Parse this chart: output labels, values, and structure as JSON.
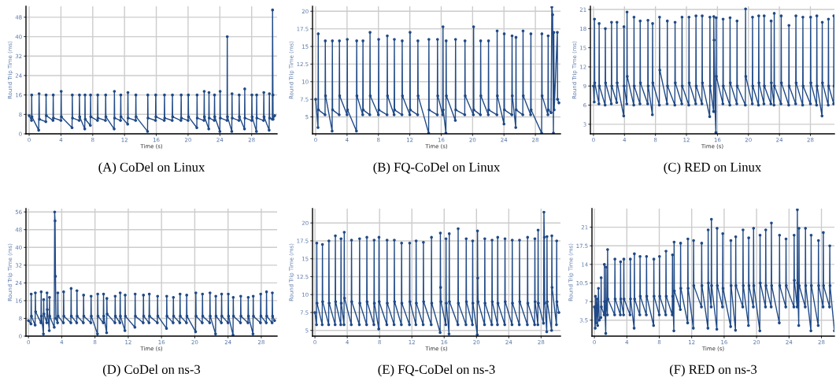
{
  "chart_data": [
    {
      "type": "line",
      "title": "(A) CoDel on Linux",
      "xlabel": "Time (s)",
      "ylabel": "Round Trip Time (ms)",
      "xlim": [
        -0.4,
        31.2
      ],
      "ylim": [
        0,
        52.5
      ],
      "xticks": [
        0,
        4,
        8,
        12,
        16,
        20,
        24,
        28
      ],
      "yticks": [
        0,
        8,
        16,
        24,
        32,
        40,
        48
      ],
      "grid": true,
      "marker": "circle",
      "line_style": "solid",
      "series": [
        {
          "color": "#204a87",
          "x": [
            0,
            0.3,
            0.32,
            0.35,
            1.2,
            1.25,
            1.3,
            2.1,
            2.13,
            2.16,
            3.0,
            3.03,
            3.06,
            4.0,
            4.03,
            4.06,
            5.4,
            5.43,
            5.46,
            6.3,
            6.33,
            6.36,
            7.0,
            7.03,
            7.06,
            7.7,
            7.73,
            7.76,
            8.6,
            8.63,
            8.66,
            9.6,
            9.63,
            9.66,
            10.7,
            10.73,
            10.76,
            11.5,
            11.53,
            11.56,
            12.4,
            12.43,
            12.46,
            13.4,
            13.43,
            13.46,
            14.9,
            14.93,
            14.96,
            15.9,
            15.93,
            15.96,
            17.0,
            17.03,
            17.06,
            18.0,
            18.03,
            18.06,
            19.1,
            19.13,
            19.16,
            20.0,
            20.03,
            20.06,
            21.1,
            21.13,
            21.16,
            22.0,
            22.03,
            22.06,
            22.6,
            22.63,
            22.66,
            23.3,
            23.33,
            23.36,
            24.0,
            24.03,
            24.06,
            24.9,
            24.93,
            24.96,
            25.5,
            25.53,
            25.56,
            26.4,
            26.43,
            26.46,
            27.1,
            27.13,
            27.16,
            28.0,
            28.03,
            28.06,
            28.6,
            28.63,
            28.66,
            29.5,
            29.53,
            29.56,
            30.2,
            30.23,
            30.26,
            30.6,
            30.63,
            30.68,
            30.7,
            30.9
          ],
          "values": [
            7.5,
            5.5,
            16,
            7,
            1.5,
            16.5,
            6,
            5,
            16,
            7.5,
            5.5,
            16,
            6.5,
            5.5,
            17.5,
            7,
            2.5,
            16,
            6.5,
            5.5,
            16,
            7,
            2,
            16,
            6,
            3.5,
            16,
            7,
            5.5,
            16,
            6.5,
            5.5,
            16,
            7,
            2,
            17.5,
            6.5,
            5.5,
            16,
            7,
            4,
            17,
            6.5,
            5.5,
            16,
            7,
            1,
            16,
            6.5,
            5.5,
            16,
            7,
            5.5,
            16,
            6.5,
            5.5,
            16,
            7,
            5.5,
            16,
            6.5,
            5.5,
            16,
            7,
            2.5,
            16,
            6.5,
            5.5,
            17.5,
            7,
            2,
            17,
            6.5,
            5.5,
            16,
            7,
            1,
            17.5,
            6.5,
            5.5,
            40,
            7,
            1,
            16.5,
            6.5,
            5.5,
            16,
            7,
            2,
            18.5,
            6.5,
            5.5,
            16,
            7,
            1,
            16,
            6.5,
            5.5,
            17,
            7,
            1.5,
            16.5,
            6.5,
            6,
            51,
            16,
            6,
            7.5
          ]
        }
      ]
    },
    {
      "type": "line",
      "title": "(B) FQ-CoDel on Linux",
      "xlabel": "Time (s)",
      "ylabel": "Round Trip Time (ms)",
      "xlim": [
        -0.4,
        31.2
      ],
      "ylim": [
        2.6,
        20.7
      ],
      "xticks": [
        0,
        4,
        8,
        12,
        16,
        20,
        24,
        28
      ],
      "yticks": [
        5,
        7.5,
        10,
        12.5,
        15,
        17.5,
        20
      ],
      "grid": true,
      "marker": "circle",
      "line_style": "solid",
      "series": [
        {
          "color": "#204a87",
          "x": [
            0,
            0.3,
            0.33,
            0.36,
            1.2,
            1.23,
            1.26,
            2.1,
            2.13,
            2.16,
            3.0,
            3.03,
            3.06,
            4.0,
            4.03,
            4.06,
            5.2,
            5.23,
            5.26,
            6.0,
            6.03,
            6.06,
            6.9,
            6.93,
            6.96,
            8.0,
            8.03,
            8.06,
            9.1,
            9.13,
            9.16,
            10.0,
            10.03,
            10.06,
            11.0,
            11.03,
            11.06,
            12.0,
            12.03,
            12.06,
            13.0,
            13.03,
            13.06,
            14.4,
            14.43,
            14.46,
            15.5,
            15.53,
            15.56,
            16.2,
            16.23,
            16.26,
            16.6,
            16.63,
            16.66,
            17.8,
            17.83,
            17.86,
            19.0,
            19.03,
            19.06,
            20.1,
            20.13,
            20.16,
            21.0,
            21.03,
            21.06,
            22.0,
            22.03,
            22.06,
            23.1,
            23.13,
            23.16,
            24.0,
            24.03,
            24.06,
            25.0,
            25.03,
            25.06,
            25.5,
            25.53,
            25.56,
            26.4,
            26.43,
            26.46,
            27.4,
            27.43,
            27.46,
            28.8,
            28.83,
            28.86,
            29.6,
            29.63,
            29.66,
            30.0,
            30.1,
            30.2,
            30.3,
            30.35,
            30.4,
            30.8,
            30.83,
            31.0
          ],
          "values": [
            7.5,
            3.5,
            16.8,
            6,
            5.3,
            15.8,
            8,
            3,
            15.8,
            6,
            5.3,
            15.8,
            8,
            5.3,
            16,
            6,
            3,
            15.8,
            8,
            5.3,
            15.8,
            6,
            5.3,
            17,
            8,
            5.3,
            16,
            6,
            5.3,
            16.5,
            8,
            5.3,
            16,
            6,
            5.3,
            15.8,
            8,
            5.3,
            17,
            6,
            5.3,
            15.8,
            8,
            2.7,
            16,
            6,
            5.3,
            16,
            8,
            5.3,
            17.8,
            6,
            2.7,
            15.8,
            8,
            4.5,
            16,
            6,
            5.3,
            15.8,
            8,
            5.3,
            17.8,
            6,
            5.3,
            15.8,
            8,
            5.3,
            15.8,
            6,
            5.3,
            17.2,
            8,
            4,
            16.8,
            6,
            5.3,
            16.5,
            8,
            3.5,
            16.3,
            6,
            5.3,
            17.2,
            8,
            5.3,
            16.8,
            6,
            2.7,
            16.8,
            8,
            5.3,
            16.5,
            6,
            5.6,
            20.6,
            19.5,
            2.7,
            17,
            6,
            17,
            7.5,
            7
          ]
        }
      ]
    },
    {
      "type": "line",
      "title": "(C) RED on Linux",
      "xlabel": "Time (s)",
      "ylabel": "Round Trip Time (ms)",
      "xlim": [
        -0.4,
        31.1
      ],
      "ylim": [
        1.5,
        21.5
      ],
      "xticks": [
        0,
        4,
        8,
        12,
        16,
        20,
        24,
        28
      ],
      "yticks": [
        3,
        6,
        9,
        12,
        15,
        18,
        21
      ],
      "grid": true,
      "marker": "circle",
      "line_style": "solid",
      "series": [
        {
          "color": "#204a87",
          "x": [
            0,
            0.1,
            0.13,
            0.16,
            0.7,
            0.73,
            0.76,
            1.5,
            1.53,
            1.56,
            2.3,
            2.33,
            2.36,
            3.0,
            3.03,
            3.06,
            3.9,
            3.93,
            3.96,
            4.3,
            4.33,
            4.36,
            5.2,
            5.23,
            5.26,
            6.0,
            6.03,
            6.06,
            7.0,
            7.03,
            7.06,
            7.6,
            7.63,
            7.66,
            8.5,
            8.53,
            8.56,
            9.5,
            9.53,
            9.56,
            10.5,
            10.53,
            10.56,
            11.4,
            11.43,
            11.46,
            12.3,
            12.33,
            12.36,
            13.2,
            13.23,
            13.26,
            14.0,
            14.03,
            14.06,
            15.0,
            15.03,
            15.06,
            15.5,
            15.53,
            15.56,
            15.7,
            15.8,
            15.83,
            15.86,
            16.7,
            16.73,
            16.76,
            17.6,
            17.63,
            17.66,
            18.5,
            18.53,
            18.56,
            19.6,
            19.63,
            19.66,
            20.5,
            20.53,
            20.56,
            21.3,
            21.33,
            21.36,
            22.0,
            22.03,
            22.06,
            22.9,
            22.93,
            22.96,
            23.3,
            23.33,
            23.36,
            24.2,
            24.23,
            24.26,
            25.2,
            25.23,
            25.26,
            26.1,
            26.13,
            26.16,
            27.0,
            27.03,
            27.06,
            28.0,
            28.03,
            28.06,
            28.8,
            28.83,
            28.86,
            29.5,
            29.53,
            29.56,
            30.3,
            30.33,
            30.36,
            31.0,
            31.03,
            31.06
          ],
          "values": [
            9,
            6.5,
            19.5,
            9.5,
            6.2,
            18.8,
            9,
            6,
            18,
            9.5,
            6.2,
            19,
            9,
            6.4,
            19,
            9.5,
            4.3,
            18.3,
            9,
            6.2,
            20.6,
            10.5,
            6,
            19.8,
            9,
            6.2,
            19.2,
            9.5,
            6.2,
            19.3,
            9,
            4.5,
            18.8,
            9.5,
            6,
            19.8,
            11.5,
            6.2,
            19.2,
            9,
            6,
            19,
            9.5,
            6.2,
            19.8,
            9,
            6,
            19.8,
            9.5,
            6.2,
            20,
            9,
            6.2,
            20,
            9.5,
            4.2,
            19.8,
            9,
            5,
            19.9,
            16.2,
            5,
            1.7,
            19.7,
            10.5,
            6.2,
            19.5,
            9,
            6,
            19.7,
            9.5,
            6.2,
            19.2,
            9,
            6,
            21.1,
            10.5,
            6.2,
            19.8,
            9,
            6,
            20,
            9.5,
            6.2,
            20,
            9,
            6.2,
            19.2,
            9.5,
            6,
            20.4,
            9,
            6.2,
            20,
            9.5,
            6,
            18.5,
            9,
            6.2,
            20,
            9.5,
            6,
            19.8,
            9,
            6.2,
            19.8,
            9.5,
            6,
            20,
            9,
            4.3,
            19,
            9.5,
            6,
            19.5,
            9,
            6.2,
            20,
            9
          ]
        }
      ]
    },
    {
      "type": "line",
      "title": "(D) CoDel on ns-3",
      "xlabel": "Time (s)",
      "ylabel": "Round Trip Time (ms)",
      "xlim": [
        -0.3,
        29.9
      ],
      "ylim": [
        0,
        57.5
      ],
      "xticks": [
        0,
        4,
        8,
        12,
        16,
        20,
        24,
        28
      ],
      "yticks": [
        0,
        8,
        16,
        24,
        32,
        40,
        48,
        56
      ],
      "grid": true,
      "marker": "circle",
      "line_style": "solid",
      "series": [
        {
          "color": "#204a87",
          "x": [
            0,
            0.3,
            0.33,
            0.36,
            0.8,
            0.83,
            0.86,
            1.5,
            1.53,
            1.56,
            1.8,
            1.83,
            1.86,
            2.2,
            2.23,
            2.26,
            2.5,
            2.53,
            2.56,
            3.1,
            3.15,
            3.2,
            3.25,
            3.3,
            3.5,
            3.53,
            3.56,
            4.2,
            4.23,
            4.26,
            5.1,
            5.13,
            5.16,
            5.8,
            5.83,
            5.86,
            6.6,
            6.63,
            6.66,
            7.5,
            7.53,
            7.56,
            8.3,
            8.33,
            8.36,
            9.0,
            9.03,
            9.06,
            9.4,
            9.43,
            9.46,
            10.4,
            10.43,
            10.46,
            11.0,
            11.03,
            11.06,
            11.6,
            11.63,
            11.66,
            12.8,
            12.83,
            12.86,
            13.8,
            13.83,
            13.86,
            14.5,
            14.53,
            14.56,
            15.5,
            15.53,
            15.56,
            16.6,
            16.63,
            16.66,
            17.4,
            17.43,
            17.46,
            18.2,
            18.23,
            18.26,
            19.0,
            19.03,
            19.06,
            20.1,
            20.13,
            20.16,
            20.9,
            20.93,
            20.96,
            21.8,
            21.83,
            21.86,
            22.5,
            22.53,
            22.56,
            23.2,
            23.23,
            23.26,
            24.0,
            24.03,
            24.06,
            24.6,
            24.63,
            24.66,
            25.5,
            25.53,
            25.56,
            26.4,
            26.43,
            26.46,
            27.0,
            27.03,
            27.06,
            27.9,
            27.93,
            27.96,
            28.6,
            28.63,
            28.66,
            29.3,
            29.33,
            29.36,
            29.6
          ],
          "values": [
            7,
            5.5,
            19,
            9,
            5,
            19.5,
            11,
            6,
            20,
            9,
            1,
            16.5,
            10,
            6,
            19.5,
            12,
            2.5,
            17.5,
            9,
            4,
            56,
            52,
            27,
            8,
            6,
            19.5,
            9,
            6,
            20,
            9,
            6,
            21.5,
            9,
            6,
            20.5,
            9,
            6,
            18.5,
            9,
            6,
            18,
            9,
            1,
            19,
            9,
            6,
            19,
            9,
            1.5,
            17,
            10,
            6,
            18,
            9,
            6,
            19.5,
            9,
            2.5,
            18.5,
            9,
            4,
            19,
            9,
            6,
            18.5,
            9,
            6,
            19,
            9,
            6,
            18,
            9,
            3.5,
            18,
            9,
            6,
            17.5,
            9,
            6,
            19,
            9,
            6,
            18.5,
            9,
            2,
            19.5,
            9,
            6,
            19,
            9,
            6,
            19.5,
            9,
            1,
            18,
            9,
            6,
            19,
            9,
            6,
            19,
            9,
            0.5,
            17.5,
            9,
            6,
            18,
            9,
            6,
            17.5,
            9,
            1,
            18,
            9,
            6,
            19,
            9,
            6,
            20,
            9,
            6,
            19.5,
            9,
            7
          ]
        }
      ]
    },
    {
      "type": "line",
      "title": "(E) FQ-CoDel on ns-3",
      "xlabel": "Time (s)",
      "ylabel": "Round Trip Time (ms)",
      "xlim": [
        -0.3,
        30.4
      ],
      "ylim": [
        4.2,
        22
      ],
      "xticks": [
        0,
        4,
        8,
        12,
        16,
        20,
        24,
        28
      ],
      "yticks": [
        5,
        7.5,
        10,
        12.5,
        15,
        17.5,
        20
      ],
      "grid": true,
      "marker": "circle",
      "line_style": "solid",
      "series": [
        {
          "color": "#204a87",
          "x": [
            0,
            0.2,
            0.23,
            0.26,
            0.9,
            0.93,
            0.96,
            1.7,
            1.73,
            1.76,
            2.5,
            2.53,
            2.56,
            3.2,
            3.23,
            3.26,
            3.6,
            3.63,
            3.66,
            4.5,
            4.53,
            4.56,
            5.5,
            5.53,
            5.56,
            6.4,
            6.43,
            6.46,
            7.3,
            7.33,
            7.36,
            7.9,
            7.93,
            7.96,
            8.9,
            8.93,
            8.96,
            9.8,
            9.83,
            9.86,
            10.7,
            10.73,
            10.76,
            11.7,
            11.73,
            11.76,
            12.5,
            12.53,
            12.56,
            13.4,
            13.43,
            13.46,
            14.4,
            14.43,
            14.46,
            15.5,
            15.53,
            15.56,
            15.6,
            16.2,
            16.23,
            16.26,
            16.6,
            16.63,
            16.66,
            17.7,
            17.73,
            17.76,
            18.7,
            18.73,
            18.76,
            19.5,
            19.53,
            19.56,
            20.1,
            20.13,
            20.16,
            20.2,
            21.0,
            21.03,
            21.06,
            21.9,
            21.93,
            21.96,
            22.6,
            22.63,
            22.66,
            23.5,
            23.53,
            23.56,
            24.4,
            24.43,
            24.46,
            25.3,
            25.33,
            25.36,
            26.3,
            26.33,
            26.36,
            27.2,
            27.23,
            27.26,
            27.6,
            27.63,
            27.66,
            28.3,
            28.35,
            28.4,
            28.45,
            28.7,
            28.73,
            28.76,
            29.3,
            29.33,
            29.36,
            29.9,
            29.93,
            29.96,
            30.2
          ],
          "values": [
            7.5,
            5.8,
            17.2,
            8.8,
            5.8,
            17,
            9,
            5.8,
            17.5,
            8.8,
            5.8,
            18.2,
            9,
            5.8,
            17.8,
            8.8,
            5.8,
            18.7,
            9.5,
            5.8,
            17.6,
            9,
            5.8,
            17.8,
            8.8,
            5.8,
            18,
            9,
            5.8,
            17.6,
            8.8,
            5.2,
            18,
            9,
            5.8,
            17.6,
            8.8,
            5.8,
            17.6,
            9,
            5.8,
            17.2,
            8.8,
            5.8,
            17.2,
            9,
            5.8,
            17.5,
            8.8,
            5.8,
            17.3,
            9,
            5.8,
            18,
            8.8,
            4.7,
            18.6,
            11,
            9,
            5.8,
            17.8,
            8.8,
            4.5,
            18.5,
            9,
            5.8,
            19.2,
            8.8,
            5.8,
            17.8,
            9,
            5.8,
            17.5,
            8.8,
            4.4,
            18.9,
            12.3,
            9,
            5.8,
            17.8,
            8.8,
            5.8,
            17.6,
            9,
            5.8,
            18,
            8.8,
            5.8,
            17.8,
            9,
            5.8,
            17.6,
            8.8,
            5.8,
            17.6,
            9,
            5.8,
            18,
            8.8,
            5.8,
            17.8,
            9,
            5.8,
            19,
            8.8,
            6,
            21.5,
            18,
            8.8,
            4.8,
            18.1,
            9,
            5,
            18.2,
            11,
            5.8,
            17.5,
            9,
            7.5
          ]
        }
      ]
    },
    {
      "type": "line",
      "title": "(F) RED on ns-3",
      "xlabel": "Time (s)",
      "ylabel": "Round Trip Time (ms)",
      "xlim": [
        -0.3,
        29.6
      ],
      "ylim": [
        0.5,
        24.5
      ],
      "xticks": [
        0,
        4,
        8,
        12,
        16,
        20,
        24,
        28
      ],
      "yticks": [
        3.5,
        7,
        10.5,
        14,
        17.5,
        21
      ],
      "grid": true,
      "marker": "circle",
      "line_style": "solid",
      "series": [
        {
          "color": "#204a87",
          "x": [
            0,
            0.1,
            0.13,
            0.2,
            0.3,
            0.4,
            0.5,
            0.6,
            0.8,
            0.83,
            0.86,
            1.2,
            1.23,
            1.26,
            1.4,
            1.43,
            1.46,
            1.6,
            1.63,
            1.66,
            2.5,
            2.53,
            2.56,
            3.2,
            3.23,
            3.26,
            3.6,
            3.63,
            3.66,
            4.4,
            4.43,
            4.46,
            4.9,
            4.93,
            4.96,
            5.6,
            5.63,
            5.66,
            6.4,
            6.43,
            6.46,
            7.3,
            7.33,
            7.36,
            8.0,
            8.03,
            8.06,
            8.8,
            8.83,
            8.86,
            9.6,
            9.63,
            9.66,
            9.8,
            9.83,
            9.86,
            10.6,
            10.63,
            10.66,
            11.5,
            11.53,
            11.56,
            12.2,
            12.23,
            12.26,
            13.2,
            13.23,
            13.26,
            14.0,
            14.03,
            14.06,
            14.4,
            14.43,
            14.46,
            15.1,
            15.13,
            15.16,
            15.8,
            15.83,
            15.86,
            16.8,
            16.83,
            16.86,
            17.4,
            17.43,
            17.46,
            18.3,
            18.33,
            18.36,
            19.0,
            19.03,
            19.06,
            19.6,
            19.63,
            19.66,
            20.4,
            20.43,
            20.46,
            21.1,
            21.13,
            21.16,
            21.8,
            21.83,
            21.86,
            22.8,
            22.83,
            22.86,
            23.6,
            23.63,
            23.66,
            24.6,
            24.63,
            24.66,
            25.0,
            25.03,
            25.06,
            25.2,
            25.23,
            25.26,
            26.0,
            26.03,
            26.06,
            26.7,
            26.73,
            26.76,
            27.6,
            27.63,
            27.66,
            28.2,
            28.23,
            28.26,
            29.0,
            29.03,
            29.06,
            29.6
          ],
          "values": [
            6,
            2,
            8,
            3,
            7.5,
            2.5,
            9.5,
            3.5,
            4,
            11.5,
            6,
            4.5,
            14,
            7,
            1,
            13.5,
            7,
            4.5,
            16.8,
            7.5,
            4.5,
            15,
            7.5,
            4.5,
            14.5,
            7.5,
            4.5,
            15,
            7.5,
            4.5,
            15,
            7.5,
            2,
            16,
            7.5,
            4.5,
            15.5,
            8,
            4.5,
            15.5,
            8,
            2.5,
            15,
            8,
            4.5,
            15.5,
            8,
            4.5,
            16.5,
            8,
            4.5,
            15.8,
            8,
            1.5,
            18.2,
            9,
            5.5,
            18,
            9.5,
            3,
            18.8,
            9.5,
            2,
            18.5,
            10,
            6,
            18,
            10,
            2,
            20.5,
            10.5,
            6,
            22.5,
            10,
            1.8,
            20.8,
            10,
            6,
            19.8,
            9.5,
            2.3,
            18.5,
            10,
            1.6,
            19.2,
            10,
            6,
            20.5,
            10,
            2.5,
            19,
            10,
            6,
            20.8,
            10,
            1.5,
            19.5,
            10.5,
            6,
            20.5,
            10,
            6,
            21.8,
            10,
            3,
            19.5,
            10,
            6,
            18.8,
            10,
            6,
            19.5,
            11,
            6,
            24.3,
            10.5,
            2.5,
            20.8,
            10,
            6,
            20.8,
            10,
            1.5,
            19.5,
            10,
            2.5,
            18.5,
            10,
            6,
            20,
            10,
            6,
            17.5,
            10,
            1.5
          ]
        }
      ]
    }
  ]
}
